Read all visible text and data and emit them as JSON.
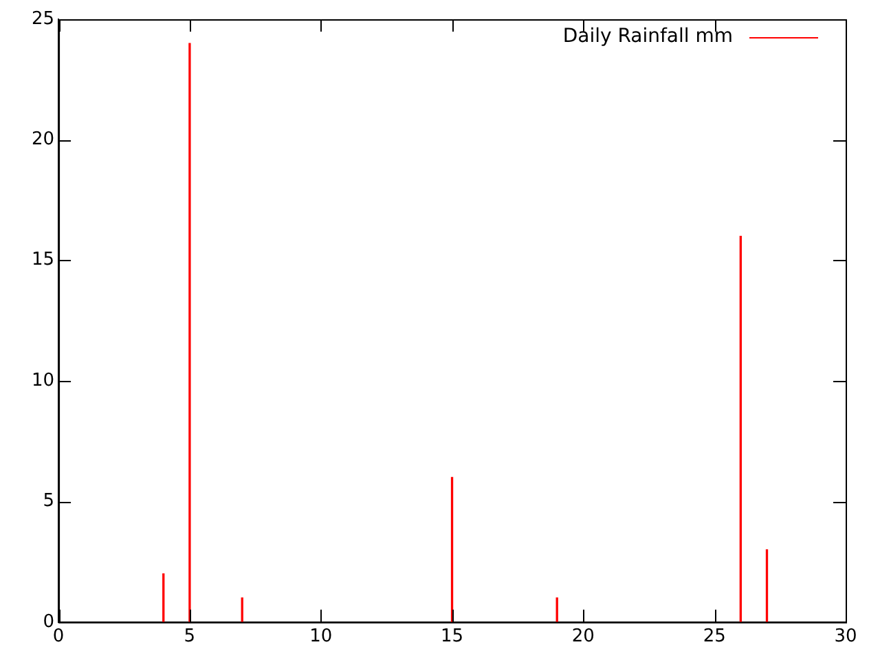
{
  "chart_data": {
    "type": "bar",
    "x": [
      4,
      5,
      7,
      15,
      19,
      26,
      27
    ],
    "series": [
      {
        "name": "Daily Rainfall mm",
        "color": "#ff0000",
        "values": [
          2,
          24,
          1,
          6,
          1,
          16,
          3
        ]
      }
    ],
    "xlim": [
      0,
      30
    ],
    "xticks": [
      0,
      5,
      10,
      15,
      20,
      25,
      30
    ],
    "ylim": [
      0,
      25
    ],
    "yticks": [
      0,
      5,
      10,
      15,
      20,
      25
    ],
    "grid": false,
    "legend": "top right"
  }
}
